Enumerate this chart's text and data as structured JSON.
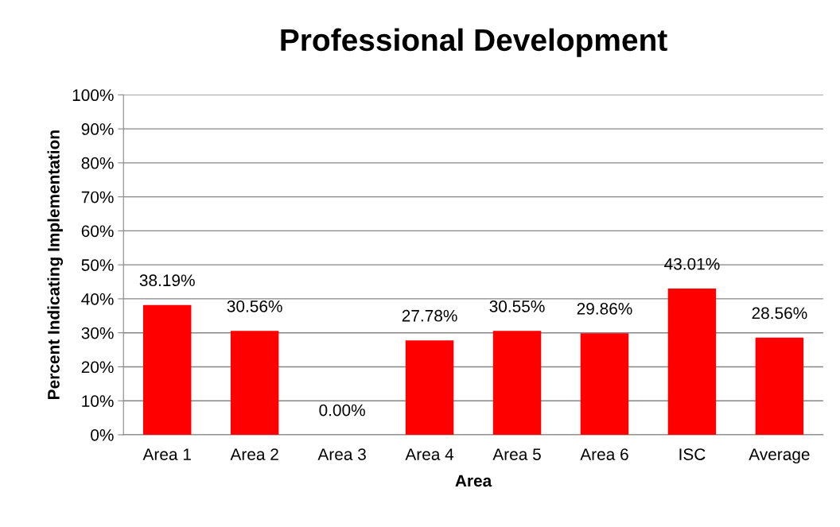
{
  "chart_data": {
    "type": "bar",
    "title": "Professional Development",
    "xlabel": "Area",
    "ylabel": "Percent Indicating Implementation",
    "categories": [
      "Area 1",
      "Area 2",
      "Area 3",
      "Area 4",
      "Area 5",
      "Area 6",
      "ISC",
      "Average"
    ],
    "values": [
      38.19,
      30.56,
      0.0,
      27.78,
      30.55,
      29.86,
      43.01,
      28.56
    ],
    "value_labels": [
      "38.19%",
      "30.56%",
      "0.00%",
      "27.78%",
      "30.55%",
      "29.86%",
      "43.01%",
      "28.56%"
    ],
    "color": "#ff0000",
    "ylim": [
      0,
      100
    ],
    "yticks": [
      {
        "value": 0,
        "label": "0%"
      },
      {
        "value": 10,
        "label": "10%"
      },
      {
        "value": 20,
        "label": "20%"
      },
      {
        "value": 30,
        "label": "30%"
      },
      {
        "value": 40,
        "label": "40%"
      },
      {
        "value": 50,
        "label": "50%"
      },
      {
        "value": 60,
        "label": "60%"
      },
      {
        "value": 70,
        "label": "70%"
      },
      {
        "value": 80,
        "label": "80%"
      },
      {
        "value": 90,
        "label": "90%"
      },
      {
        "value": 100,
        "label": "100%"
      }
    ],
    "grid": "y",
    "legend": false
  }
}
